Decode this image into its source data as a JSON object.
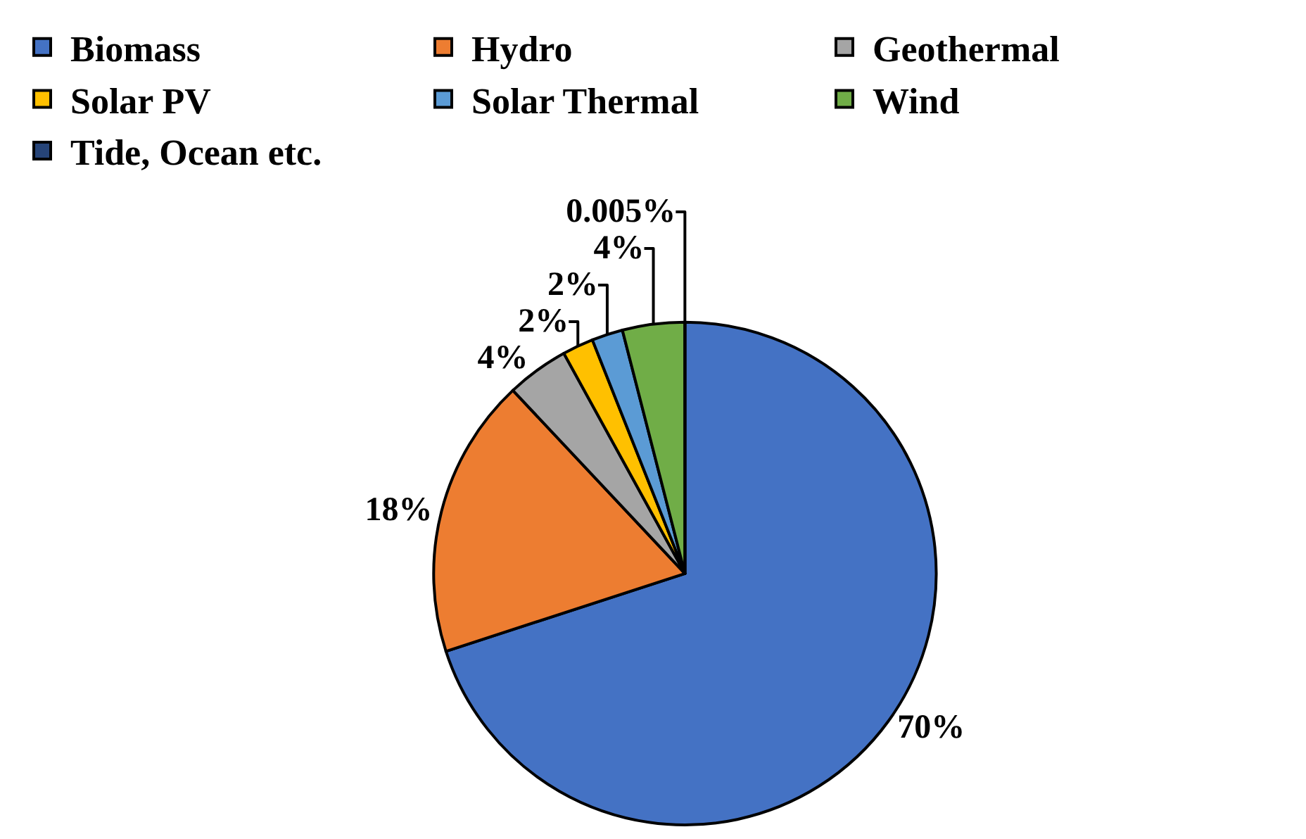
{
  "chart_data": {
    "type": "pie",
    "categories": [
      "Biomass",
      "Hydro",
      "Geothermal",
      "Solar PV",
      "Solar Thermal",
      "Wind",
      "Tide, Ocean etc."
    ],
    "values": [
      70,
      18,
      4,
      2,
      2,
      4,
      0.005
    ],
    "colors": [
      "#4472c4",
      "#ed7d31",
      "#a5a5a5",
      "#ffc000",
      "#5b9bd5",
      "#70ad47",
      "#264478"
    ],
    "value_labels": [
      "70%",
      "18%",
      "4%",
      "2%",
      "2%",
      "4%",
      "0.005%"
    ],
    "legend": "top"
  }
}
